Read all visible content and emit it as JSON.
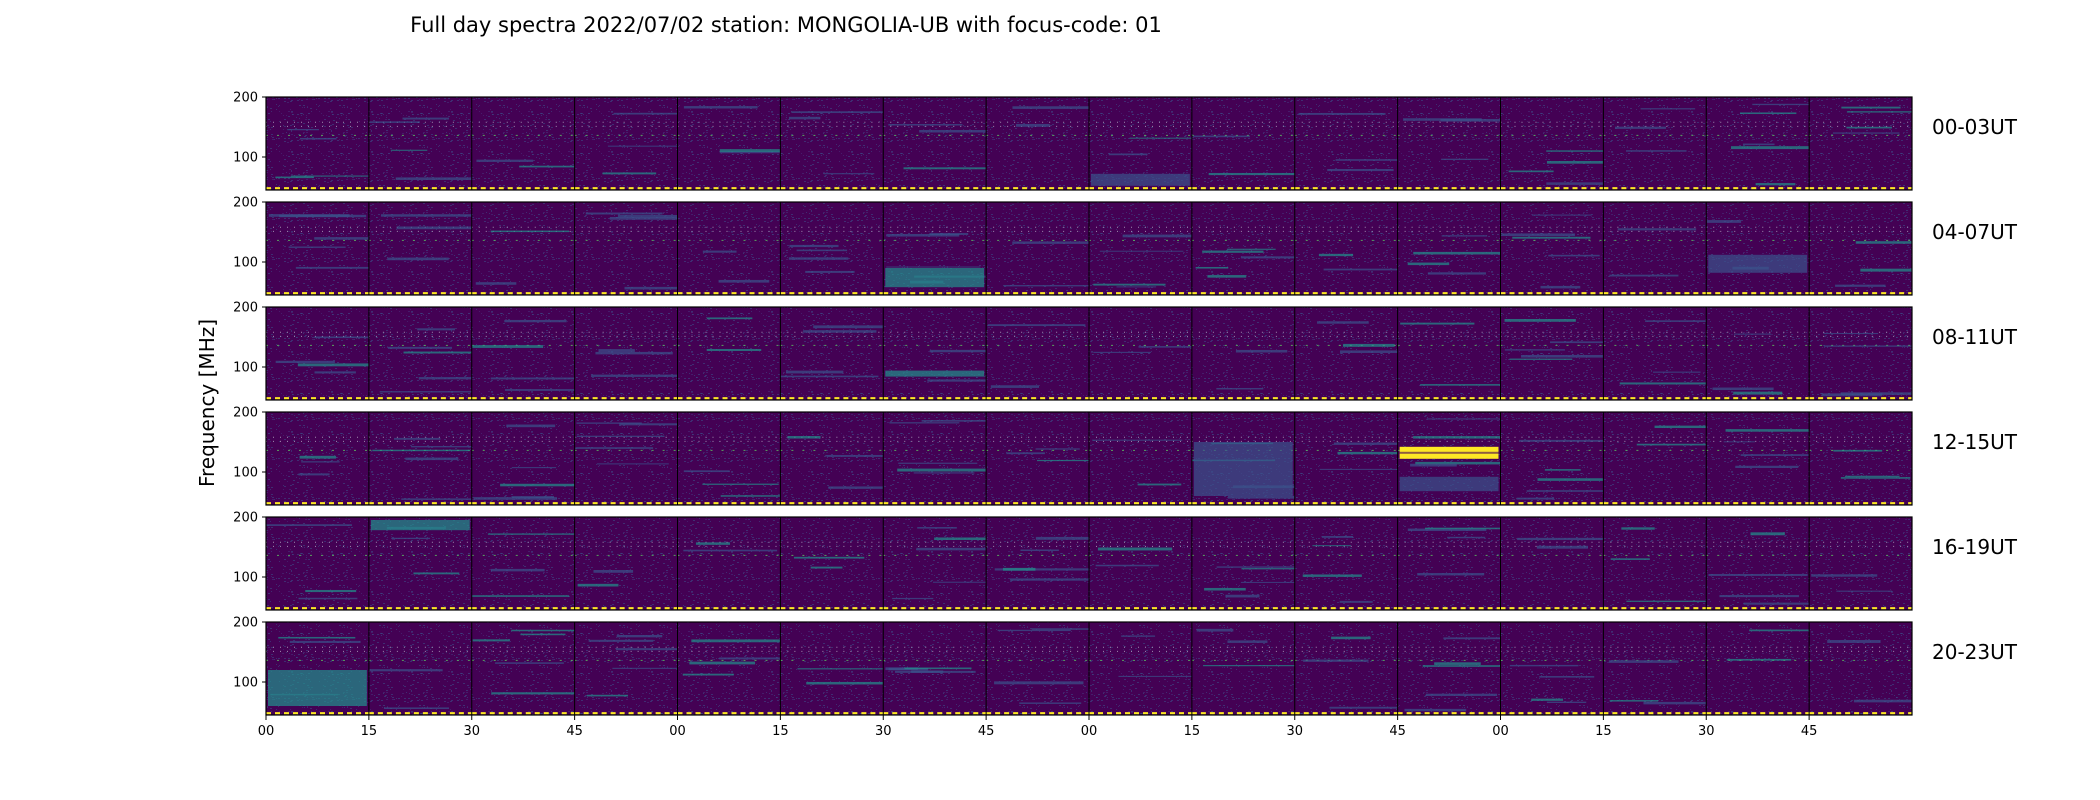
{
  "chart_data": {
    "type": "heatmap",
    "title": "Full day spectra 2022/07/02 station: MONGOLIA-UB with focus-code: 01",
    "ylabel": "Frequency [MHz]",
    "xlabel": "",
    "ylim": [
      45,
      200
    ],
    "yticks": [
      {
        "value": 200,
        "label": "200"
      },
      {
        "value": 100,
        "label": "100"
      }
    ],
    "xticks": [
      "00",
      "15",
      "30",
      "45",
      "00",
      "15",
      "30",
      "45",
      "00",
      "15",
      "30",
      "45",
      "00",
      "15",
      "30",
      "45"
    ],
    "grid": false,
    "legend": "none",
    "colormap": [
      "#440154",
      "#3b528b",
      "#21918c",
      "#5ec962",
      "#fde725"
    ],
    "rows": [
      {
        "label": "00-03UT",
        "hours": [
          0,
          1,
          2,
          3
        ]
      },
      {
        "label": "04-07UT",
        "hours": [
          4,
          5,
          6,
          7
        ]
      },
      {
        "label": "08-11UT",
        "hours": [
          8,
          9,
          10,
          11
        ]
      },
      {
        "label": "12-15UT",
        "hours": [
          12,
          13,
          14,
          15
        ]
      },
      {
        "label": "16-19UT",
        "hours": [
          16,
          17,
          18,
          19
        ]
      },
      {
        "label": "20-23UT",
        "hours": [
          20,
          21,
          22,
          23
        ]
      }
    ],
    "panels_per_row": 16,
    "panel_minutes": 15,
    "persistent_lines_mhz": [
      158,
      151,
      136,
      48
    ],
    "bright_events": [
      {
        "row": 3,
        "panel": 11,
        "fmin": 122,
        "fmax": 142,
        "level": 1.0
      },
      {
        "row": 3,
        "panel": 11,
        "fmin": 68,
        "fmax": 92,
        "level": 0.5
      },
      {
        "row": 4,
        "panel": 1,
        "fmin": 178,
        "fmax": 195,
        "level": 0.55
      },
      {
        "row": 1,
        "panel": 6,
        "fmin": 58,
        "fmax": 90,
        "level": 0.55
      },
      {
        "row": 1,
        "panel": 14,
        "fmin": 82,
        "fmax": 112,
        "level": 0.5
      },
      {
        "row": 2,
        "panel": 6,
        "fmin": 84,
        "fmax": 94,
        "level": 0.6
      },
      {
        "row": 0,
        "panel": 8,
        "fmin": 52,
        "fmax": 72,
        "level": 0.5
      },
      {
        "row": 5,
        "panel": 0,
        "fmin": 60,
        "fmax": 120,
        "level": 0.55
      },
      {
        "row": 3,
        "panel": 9,
        "fmin": 60,
        "fmax": 150,
        "level": 0.45
      }
    ]
  }
}
